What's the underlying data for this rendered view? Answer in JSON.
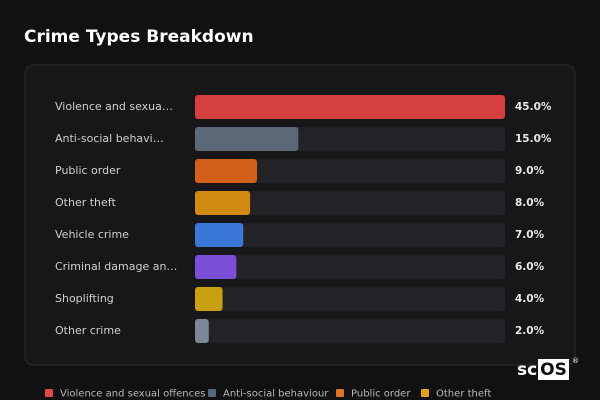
{
  "chart_data": {
    "type": "bar",
    "orientation": "horizontal",
    "title": "Crime Types Breakdown",
    "categories": [
      "Violence and sexua…",
      "Anti-social behavi…",
      "Public order",
      "Other theft",
      "Vehicle crime",
      "Criminal damage an…",
      "Shoplifting",
      "Other crime"
    ],
    "values": [
      45,
      15,
      9,
      8,
      7,
      6,
      4,
      2
    ],
    "value_labels": [
      "45.0%",
      "15.0%",
      "9.0%",
      "8.0%",
      "7.0%",
      "6.0%",
      "4.0%",
      "2.0%"
    ],
    "colors": [
      "#d63f3f",
      "#5c6778",
      "#d2601a",
      "#d08a12",
      "#3a77d6",
      "#7a4fd6",
      "#c9a010",
      "#7d8797"
    ],
    "legend": [
      {
        "name": "Violence and sexual offences",
        "color": "#e04848"
      },
      {
        "name": "Anti-social behaviour",
        "color": "#5c6778"
      },
      {
        "name": "Public order",
        "color": "#e0702a"
      },
      {
        "name": "Other theft",
        "color": "#e0a020"
      }
    ]
  },
  "logo": {
    "prefix": "sc",
    "boxed": "OS",
    "mark": "®"
  }
}
